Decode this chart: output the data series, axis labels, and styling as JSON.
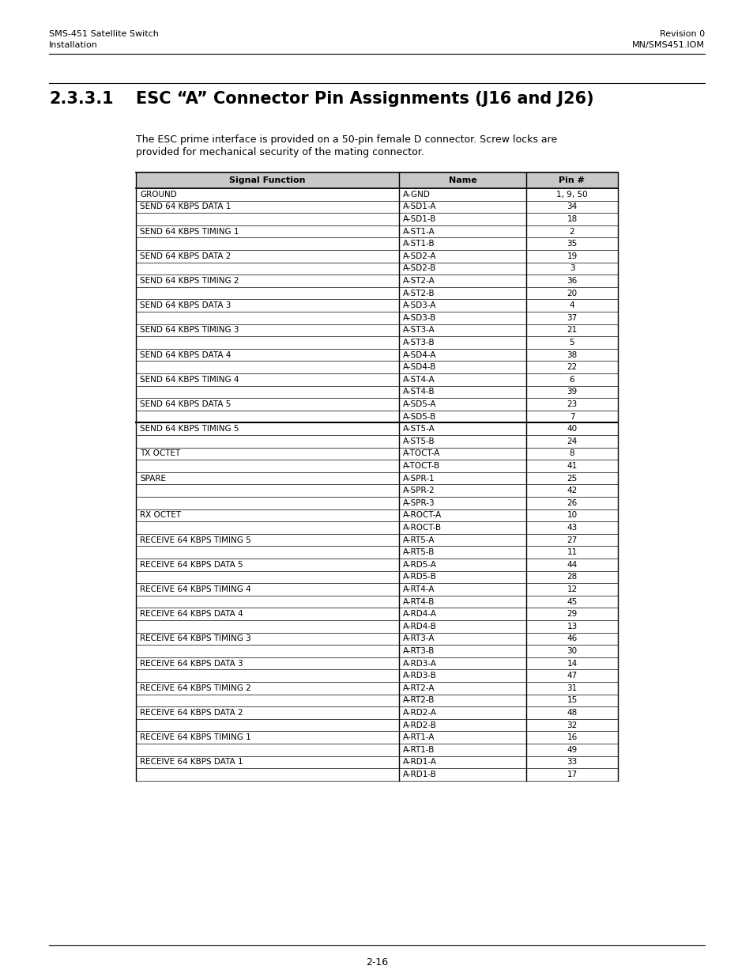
{
  "page_title_number": "2.3.3.1",
  "page_title": "ESC “A” Connector Pin Assignments (J16 and J26)",
  "header_left_line1": "SMS-451 Satellite Switch",
  "header_left_line2": "Installation",
  "header_right_line1": "Revision 0",
  "header_right_line2": "MN/SMS451.IOM",
  "body_line1": "The ESC prime interface is provided on a 50-pin female D connector. Screw locks are",
  "body_line2": "provided for mechanical security of the mating connector.",
  "table_headers": [
    "Signal Function",
    "Name",
    "Pin #"
  ],
  "table_rows": [
    [
      "GROUND",
      "A-GND",
      "1, 9, 50"
    ],
    [
      "SEND 64 KBPS DATA 1",
      "A-SD1-A",
      "34"
    ],
    [
      "",
      "A-SD1-B",
      "18"
    ],
    [
      "SEND 64 KBPS TIMING 1",
      "A-ST1-A",
      "2"
    ],
    [
      "",
      "A-ST1-B",
      "35"
    ],
    [
      "SEND 64 KBPS DATA 2",
      "A-SD2-A",
      "19"
    ],
    [
      "",
      "A-SD2-B",
      "3"
    ],
    [
      "SEND 64 KBPS TIMING 2",
      "A-ST2-A",
      "36"
    ],
    [
      "",
      "A-ST2-B",
      "20"
    ],
    [
      "SEND 64 KBPS DATA 3",
      "A-SD3-A",
      "4"
    ],
    [
      "",
      "A-SD3-B",
      "37"
    ],
    [
      "SEND 64 KBPS TIMING 3",
      "A-ST3-A",
      "21"
    ],
    [
      "",
      "A-ST3-B",
      "5"
    ],
    [
      "SEND 64 KBPS DATA 4",
      "A-SD4-A",
      "38"
    ],
    [
      "",
      "A-SD4-B",
      "22"
    ],
    [
      "SEND 64 KBPS TIMING 4",
      "A-ST4-A",
      "6"
    ],
    [
      "",
      "A-ST4-B",
      "39"
    ],
    [
      "SEND 64 KBPS DATA 5",
      "A-SD5-A",
      "23"
    ],
    [
      "",
      "A-SD5-B",
      "7"
    ],
    [
      "SEND 64 KBPS TIMING 5",
      "A-ST5-A",
      "40"
    ],
    [
      "",
      "A-ST5-B",
      "24"
    ],
    [
      "TX OCTET",
      "A-TOCT-A",
      "8"
    ],
    [
      "",
      "A-TOCT-B",
      "41"
    ],
    [
      "SPARE",
      "A-SPR-1",
      "25"
    ],
    [
      "",
      "A-SPR-2",
      "42"
    ],
    [
      "",
      "A-SPR-3",
      "26"
    ],
    [
      "RX OCTET",
      "A-ROCT-A",
      "10"
    ],
    [
      "",
      "A-ROCT-B",
      "43"
    ],
    [
      "RECEIVE 64 KBPS TIMING 5",
      "A-RT5-A",
      "27"
    ],
    [
      "",
      "A-RT5-B",
      "11"
    ],
    [
      "RECEIVE 64 KBPS DATA 5",
      "A-RD5-A",
      "44"
    ],
    [
      "",
      "A-RD5-B",
      "28"
    ],
    [
      "RECEIVE 64 KBPS TIMING 4",
      "A-RT4-A",
      "12"
    ],
    [
      "",
      "A-RT4-B",
      "45"
    ],
    [
      "RECEIVE 64 KBPS DATA 4",
      "A-RD4-A",
      "29"
    ],
    [
      "",
      "A-RD4-B",
      "13"
    ],
    [
      "RECEIVE 64 KBPS TIMING 3",
      "A-RT3-A",
      "46"
    ],
    [
      "",
      "A-RT3-B",
      "30"
    ],
    [
      "RECEIVE 64 KBPS DATA 3",
      "A-RD3-A",
      "14"
    ],
    [
      "",
      "A-RD3-B",
      "47"
    ],
    [
      "RECEIVE 64 KBPS TIMING 2",
      "A-RT2-A",
      "31"
    ],
    [
      "",
      "A-RT2-B",
      "15"
    ],
    [
      "RECEIVE 64 KBPS DATA 2",
      "A-RD2-A",
      "48"
    ],
    [
      "",
      "A-RD2-B",
      "32"
    ],
    [
      "RECEIVE 64 KBPS TIMING 1",
      "A-RT1-A",
      "16"
    ],
    [
      "",
      "A-RT1-B",
      "49"
    ],
    [
      "RECEIVE 64 KBPS DATA 1",
      "A-RD1-A",
      "33"
    ],
    [
      "",
      "A-RD1-B",
      "17"
    ]
  ],
  "thick_border_after_row": 19,
  "footer_text": "2-16",
  "bg_color": "#ffffff",
  "text_color": "#000000",
  "header_bg": "#c8c8c8",
  "table_font_size": 7.5,
  "body_font_size": 9.0,
  "header_font_size": 8.0,
  "title_font_size": 15.0,
  "section_num_font_size": 15.0
}
